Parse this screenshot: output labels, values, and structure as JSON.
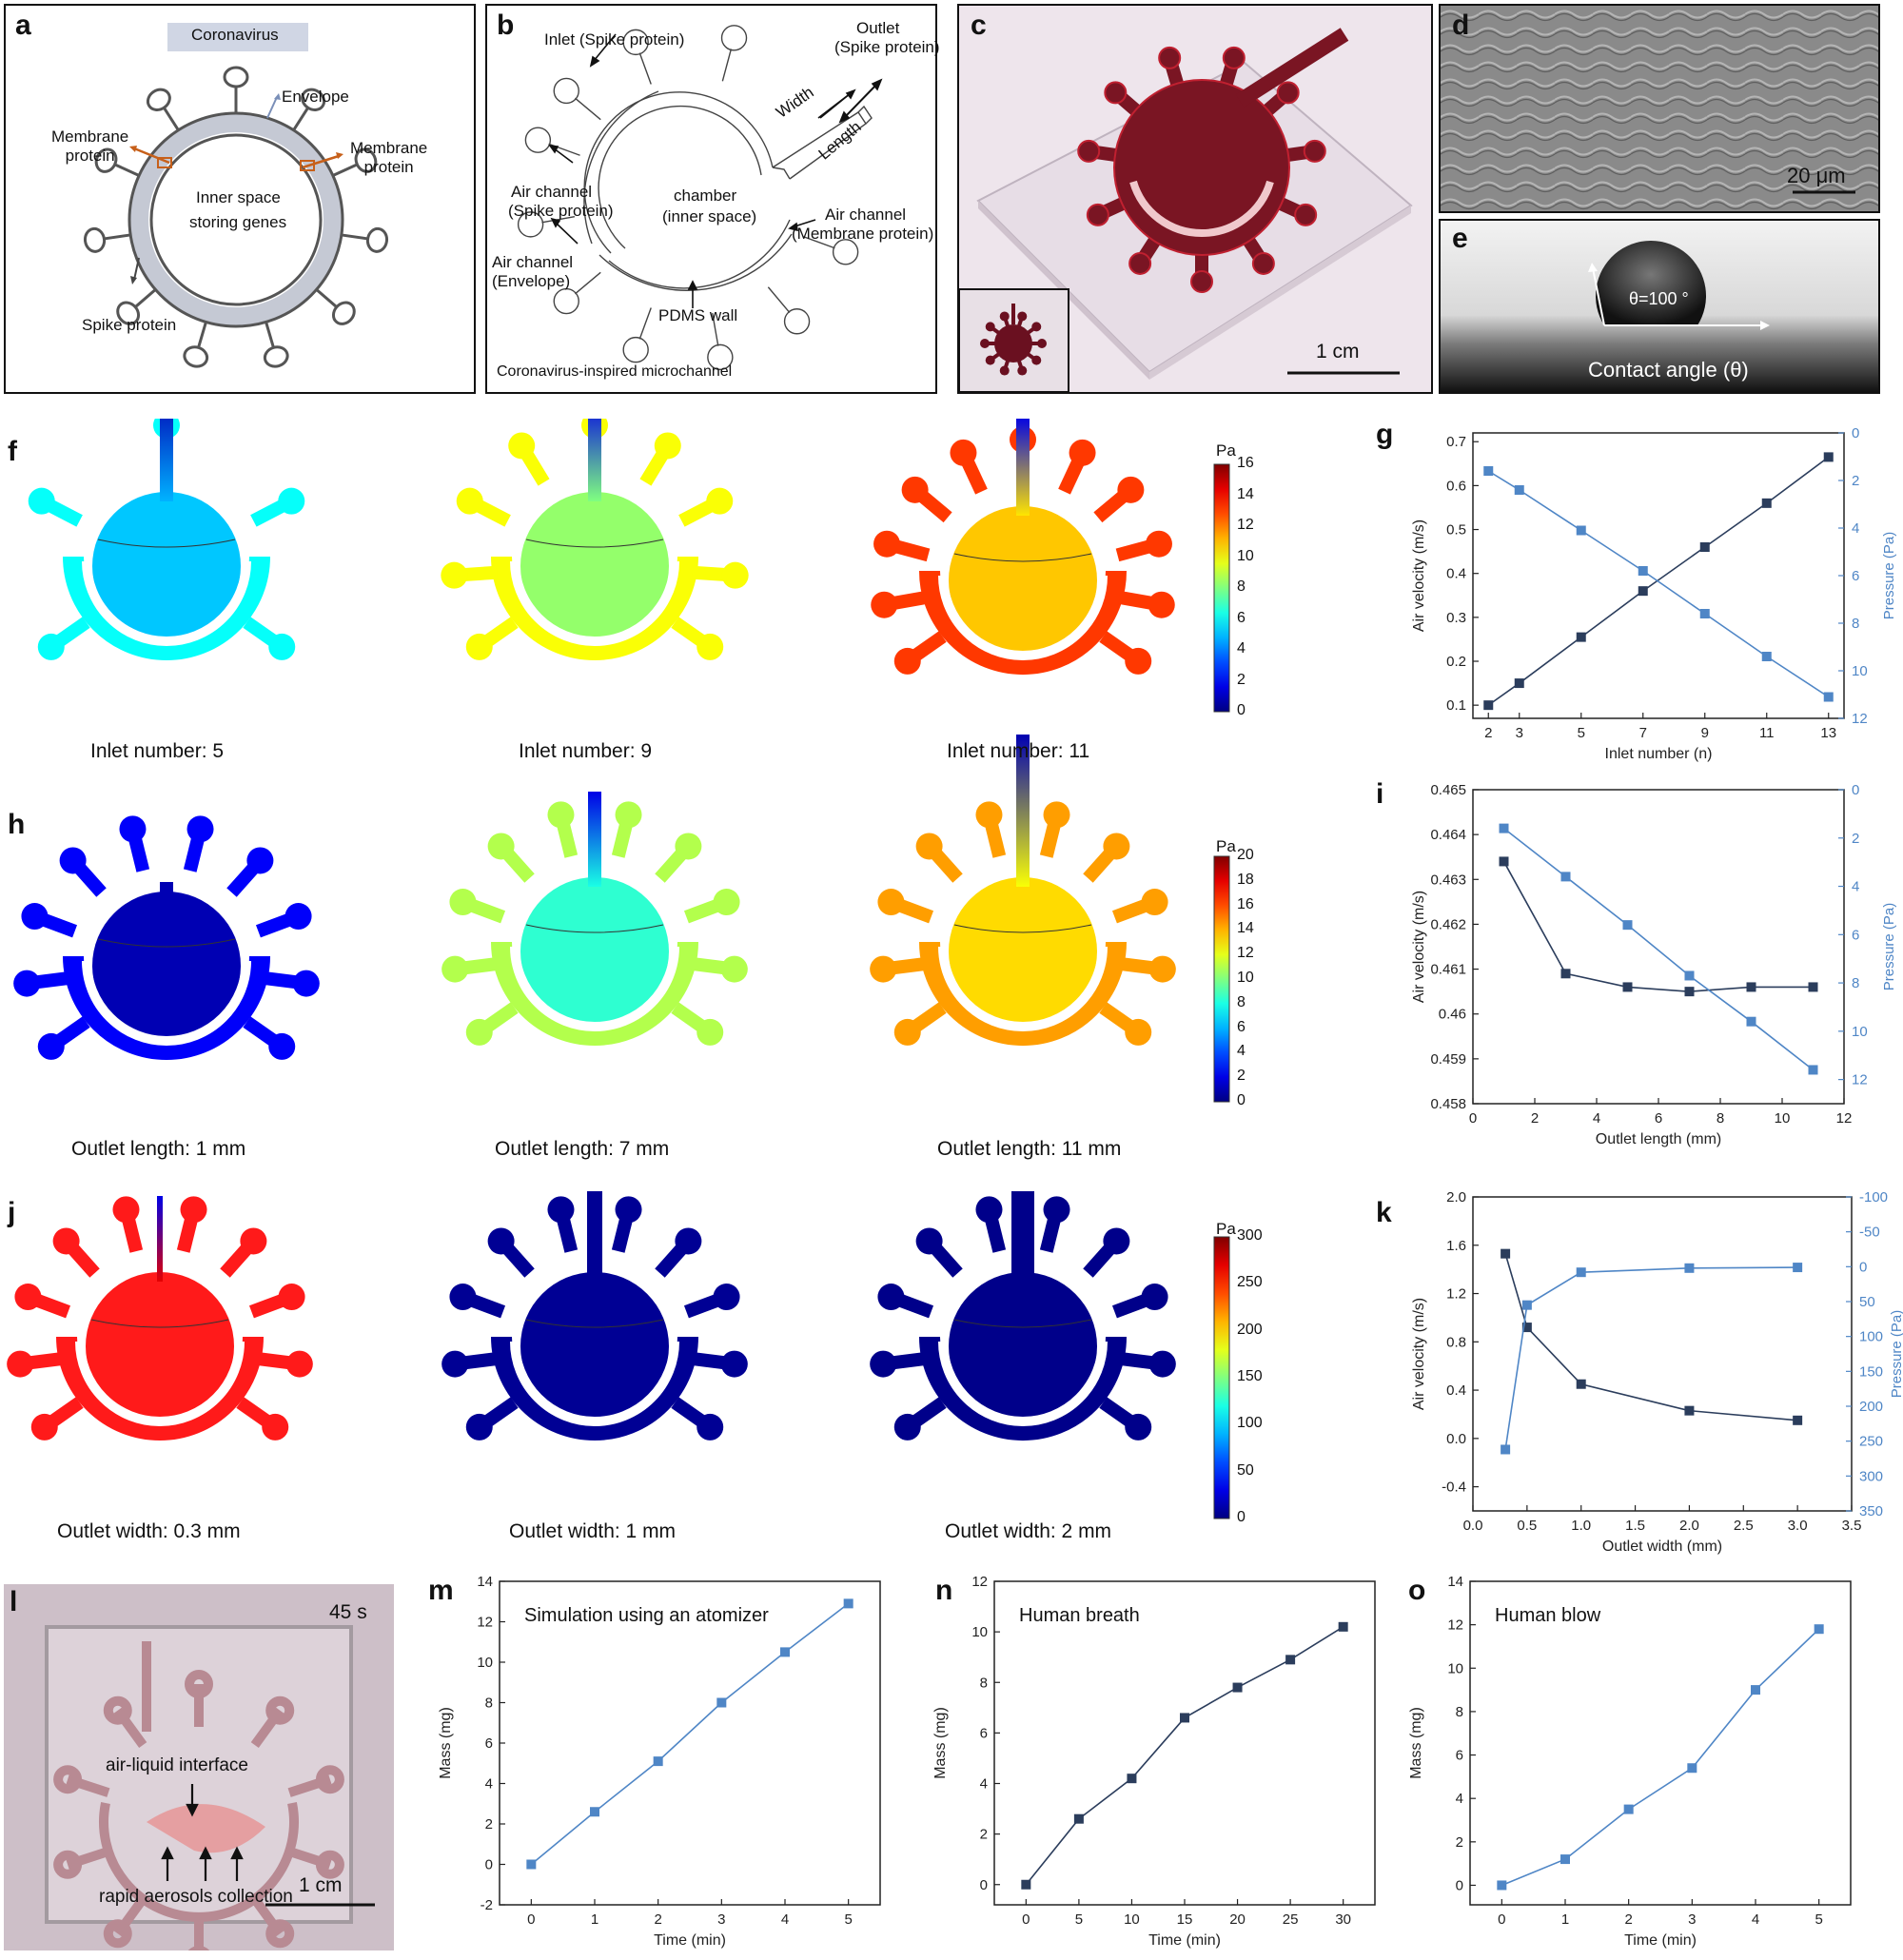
{
  "panels": {
    "a": {
      "letter": "a",
      "banner": "Coronavirus",
      "labels": {
        "envelope": "Envelope",
        "membrane_left": "Membrane\nprotein",
        "membrane_right": "Membrane\nprotein",
        "inner1": "Inner space",
        "inner2": "storing genes",
        "spike": "Spike protein"
      }
    },
    "b": {
      "letter": "b",
      "labels": {
        "inlet": "Inlet (Spike protein)",
        "outlet1": "Outlet",
        "outlet2": "(Spike protein)",
        "width": "Width",
        "length": "Length",
        "air_spike1": "Air channel",
        "air_spike2": "(Spike protein)",
        "chamber1": "chamber",
        "chamber2": "(inner space)",
        "air_mem1": "Air channel",
        "air_mem2": "(Membrane protein)",
        "air_env1": "Air channel",
        "air_env2": "(Envelope)",
        "pdms": "PDMS wall",
        "footer": "Coronavirus-inspired microchannel"
      }
    },
    "c": {
      "letter": "c",
      "scale": "1 cm"
    },
    "d": {
      "letter": "d",
      "scale": "20 μm"
    },
    "e": {
      "letter": "e",
      "angle": "θ=100 °",
      "caption": "Contact angle (θ)"
    },
    "f": {
      "letter": "f",
      "captions": [
        "Inlet number: 5",
        "Inlet number: 9",
        "Inlet number: 11"
      ],
      "colorbar": {
        "unit": "Pa",
        "ticks": [
          "16",
          "14",
          "12",
          "10",
          "8",
          "6",
          "4",
          "2",
          "0"
        ]
      }
    },
    "h": {
      "letter": "h",
      "captions": [
        "Outlet length: 1 mm",
        "Outlet length: 7 mm",
        "Outlet length: 11 mm"
      ],
      "colorbar": {
        "unit": "Pa",
        "ticks": [
          "20",
          "18",
          "16",
          "14",
          "12",
          "10",
          "8",
          "6",
          "4",
          "2",
          "0"
        ]
      }
    },
    "j": {
      "letter": "j",
      "captions": [
        "Outlet width: 0.3 mm",
        "Outlet width: 1 mm",
        "Outlet width: 2 mm"
      ],
      "colorbar": {
        "unit": "Pa",
        "ticks": [
          "300",
          "250",
          "200",
          "150",
          "100",
          "50",
          "0"
        ]
      }
    },
    "l": {
      "letter": "l",
      "time": "45 s",
      "interface": "air-liquid interface",
      "collection": "rapid aerosols collection",
      "scale": "1 cm"
    }
  },
  "colors": {
    "dark_series": "#2b3d5c",
    "light_series": "#4f86c6",
    "bg_photo": "#d9cfd6"
  },
  "chart_data": [
    {
      "id": "g",
      "letter": "g",
      "type": "line",
      "xlabel": "Inlet number (n)",
      "ylabel": "Air velocity (m/s)",
      "y2label": "Pressure (Pa)",
      "xlim": [
        1.5,
        13.5
      ],
      "ylim": [
        0.07,
        0.72
      ],
      "y2lim": [
        0,
        12
      ],
      "y2_inverted": true,
      "xticks": [
        2,
        3,
        5,
        7,
        9,
        11,
        13
      ],
      "yticks": [
        0.1,
        0.2,
        0.3,
        0.4,
        0.5,
        0.6,
        0.7
      ],
      "y2ticks": [
        0,
        2,
        4,
        6,
        8,
        10,
        12
      ],
      "series": [
        {
          "axis": "left",
          "color": "#2b3d5c",
          "x": [
            2,
            3,
            5,
            7,
            9,
            11,
            13
          ],
          "y": [
            0.1,
            0.15,
            0.255,
            0.36,
            0.46,
            0.56,
            0.665
          ]
        },
        {
          "axis": "right",
          "color": "#4f86c6",
          "x": [
            2,
            3,
            5,
            7,
            9,
            11,
            13
          ],
          "y": [
            1.6,
            2.4,
            4.1,
            5.8,
            7.6,
            9.4,
            11.1
          ]
        }
      ]
    },
    {
      "id": "i",
      "letter": "i",
      "type": "line",
      "xlabel": "Outlet length (mm)",
      "ylabel": "Air velocity (m/s)",
      "y2label": "Pressure (Pa)",
      "xlim": [
        0,
        12
      ],
      "ylim": [
        0.458,
        0.465
      ],
      "y2lim": [
        0,
        13
      ],
      "y2_inverted": true,
      "xticks": [
        0,
        2,
        4,
        6,
        8,
        10,
        12
      ],
      "yticks": [
        0.458,
        0.459,
        0.46,
        0.461,
        0.462,
        0.463,
        0.464,
        0.465
      ],
      "y2ticks": [
        0,
        2,
        4,
        6,
        8,
        10,
        12
      ],
      "series": [
        {
          "axis": "left",
          "color": "#2b3d5c",
          "x": [
            1,
            3,
            5,
            7,
            9,
            11
          ],
          "y": [
            0.4634,
            0.4609,
            0.4606,
            0.4605,
            0.4606,
            0.4606
          ]
        },
        {
          "axis": "right",
          "color": "#4f86c6",
          "x": [
            1,
            3,
            5,
            7,
            9,
            11
          ],
          "y": [
            1.6,
            3.6,
            5.6,
            7.7,
            9.6,
            11.6
          ]
        }
      ]
    },
    {
      "id": "k",
      "letter": "k",
      "type": "line",
      "xlabel": "Outlet width (mm)",
      "ylabel": "Air velocity (m/s)",
      "y2label": "Pressure (Pa)",
      "xlim": [
        0,
        3.5
      ],
      "ylim": [
        -0.6,
        2.0
      ],
      "y2lim": [
        -100,
        350
      ],
      "y2_inverted": true,
      "xticks": [
        0,
        0.5,
        1.0,
        1.5,
        2.0,
        2.5,
        3.0,
        3.5
      ],
      "xticklabels": [
        "0.0",
        "0.5",
        "1.0",
        "1.5",
        "2.0",
        "2.5",
        "3.0",
        "3.5"
      ],
      "yticks": [
        -0.4,
        0,
        0.4,
        0.8,
        1.2,
        1.6,
        2.0
      ],
      "yticklabels": [
        "-0.4",
        "0.0",
        "0.4",
        "0.8",
        "1.2",
        "1.6",
        "2.0"
      ],
      "y2ticks": [
        -100,
        -50,
        0,
        50,
        100,
        150,
        200,
        250,
        300,
        350
      ],
      "series": [
        {
          "axis": "left",
          "color": "#2b3d5c",
          "x": [
            0.3,
            0.5,
            1,
            2,
            3
          ],
          "y": [
            1.53,
            0.92,
            0.45,
            0.23,
            0.15
          ]
        },
        {
          "axis": "right",
          "color": "#4f86c6",
          "x": [
            0.3,
            0.5,
            1,
            2,
            3
          ],
          "y": [
            262,
            55,
            8,
            2,
            1
          ]
        }
      ]
    },
    {
      "id": "m",
      "letter": "m",
      "type": "line",
      "title": "Simulation using an atomizer",
      "xlabel": "Time (min)",
      "ylabel": "Mass (mg)",
      "xlim": [
        -0.5,
        5.5
      ],
      "ylim": [
        -2,
        14
      ],
      "xticks": [
        0,
        1,
        2,
        3,
        4,
        5
      ],
      "yticks": [
        -2,
        0,
        2,
        4,
        6,
        8,
        10,
        12,
        14
      ],
      "series": [
        {
          "axis": "left",
          "color": "#4f86c6",
          "x": [
            0,
            1,
            2,
            3,
            4,
            5
          ],
          "y": [
            0,
            2.6,
            5.1,
            8.0,
            10.5,
            12.9
          ]
        }
      ]
    },
    {
      "id": "n",
      "letter": "n",
      "type": "line",
      "title": "Human breath",
      "xlabel": "Time (min)",
      "ylabel": "Mass (mg)",
      "xlim": [
        -3,
        33
      ],
      "ylim": [
        -0.8,
        12
      ],
      "xticks": [
        0,
        5,
        10,
        15,
        20,
        25,
        30
      ],
      "yticks": [
        0,
        2,
        4,
        6,
        8,
        10,
        12
      ],
      "series": [
        {
          "axis": "left",
          "color": "#2b3d5c",
          "x": [
            0,
            5,
            10,
            15,
            20,
            25,
            30
          ],
          "y": [
            0,
            2.6,
            4.2,
            6.6,
            7.8,
            8.9,
            10.2
          ]
        }
      ]
    },
    {
      "id": "o",
      "letter": "o",
      "type": "line",
      "title": "Human blow",
      "xlabel": "Time (min)",
      "ylabel": "Mass (mg)",
      "xlim": [
        -0.5,
        5.5
      ],
      "ylim": [
        -0.9,
        14
      ],
      "xticks": [
        0,
        1,
        2,
        3,
        4,
        5
      ],
      "yticks": [
        0,
        2,
        4,
        6,
        8,
        10,
        12,
        14
      ],
      "series": [
        {
          "axis": "left",
          "color": "#4f86c6",
          "x": [
            0,
            1,
            2,
            3,
            4,
            5
          ],
          "y": [
            0,
            1.2,
            3.5,
            5.4,
            9.0,
            11.8
          ]
        }
      ]
    }
  ]
}
